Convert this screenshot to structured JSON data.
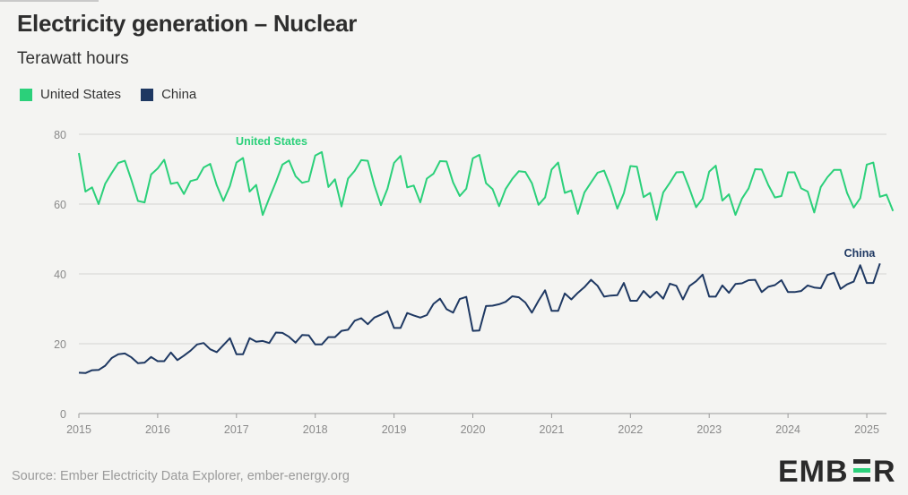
{
  "title": "Electricity generation – Nuclear",
  "subtitle": "Terawatt hours",
  "source": "Source: Ember Electricity Data Explorer, ember-energy.org",
  "logo_text": "EMBER",
  "colors": {
    "us": "#2bd07a",
    "china": "#1e3862",
    "grid": "#d3d3d3",
    "axis_text": "#8a8a8a"
  },
  "chart_data": {
    "type": "line",
    "title": "Electricity generation – Nuclear",
    "ylabel": "Terawatt hours",
    "xlabel": "",
    "ylim": [
      0,
      80
    ],
    "yticks": [
      0,
      20,
      40,
      60,
      80
    ],
    "xlim": [
      2015.0,
      2025.25
    ],
    "xticks": [
      "2015",
      "2016",
      "2017",
      "2018",
      "2019",
      "2020",
      "2021",
      "2022",
      "2023",
      "2024",
      "2025"
    ],
    "x_start": "2015-01",
    "x_step": "month",
    "legend_position": "top-left",
    "series": [
      {
        "name": "United States",
        "label": "United States",
        "color": "#2bd07a",
        "values": [
          74.6,
          63.6,
          64.8,
          60.0,
          65.8,
          68.9,
          71.8,
          72.4,
          66.9,
          60.9,
          60.5,
          68.5,
          70.2,
          72.7,
          65.8,
          66.2,
          62.9,
          66.6,
          67.1,
          70.5,
          71.5,
          65.4,
          60.9,
          65.2,
          71.9,
          73.2,
          63.6,
          65.5,
          56.9,
          61.7,
          66.3,
          71.3,
          72.5,
          68.0,
          66.1,
          66.6,
          73.9,
          74.9,
          64.9,
          67.1,
          59.3,
          67.3,
          69.5,
          72.6,
          72.4,
          65.4,
          59.7,
          64.4,
          71.8,
          73.8,
          64.8,
          65.3,
          60.5,
          67.3,
          68.7,
          72.3,
          72.2,
          66.2,
          62.3,
          64.4,
          73.1,
          74.1,
          66.0,
          64.3,
          59.4,
          64.3,
          67.2,
          69.4,
          69.2,
          66.0,
          59.8,
          61.9,
          69.9,
          71.9,
          63.2,
          63.9,
          57.2,
          63.3,
          66.2,
          69.0,
          69.6,
          64.8,
          58.7,
          63.1,
          70.9,
          70.7,
          62.0,
          63.2,
          55.5,
          63.3,
          66.1,
          69.1,
          69.2,
          64.4,
          59.1,
          61.6,
          69.3,
          71.0,
          61.0,
          62.8,
          56.9,
          61.6,
          64.5,
          70.0,
          69.9,
          65.5,
          61.9,
          62.3,
          69.1,
          69.1,
          64.5,
          63.6,
          57.6,
          64.9,
          67.7,
          69.8,
          69.8,
          63.2,
          59.0,
          61.7,
          71.3,
          71.9,
          62.1,
          62.7,
          58.0
        ]
      },
      {
        "name": "China",
        "label": "China",
        "color": "#1e3862",
        "values": [
          11.7,
          11.6,
          12.4,
          12.5,
          13.7,
          15.9,
          17.0,
          17.2,
          16.1,
          14.4,
          14.6,
          16.2,
          15.0,
          15.0,
          17.5,
          15.3,
          16.6,
          18.0,
          19.8,
          20.2,
          18.4,
          17.6,
          19.6,
          21.6,
          17.0,
          17.0,
          21.6,
          20.6,
          20.8,
          20.2,
          23.2,
          23.1,
          22.0,
          20.3,
          22.5,
          22.4,
          19.8,
          19.8,
          21.9,
          21.9,
          23.7,
          24.0,
          26.6,
          27.3,
          25.6,
          27.5,
          28.3,
          29.3,
          24.5,
          24.5,
          28.8,
          28.1,
          27.5,
          28.2,
          31.4,
          32.9,
          29.9,
          28.9,
          32.8,
          33.4,
          23.7,
          23.8,
          30.8,
          30.9,
          31.3,
          32.0,
          33.6,
          33.3,
          31.8,
          28.9,
          32.3,
          35.3,
          29.4,
          29.4,
          34.4,
          32.7,
          34.6,
          36.2,
          38.3,
          36.6,
          33.5,
          33.8,
          33.9,
          37.4,
          32.3,
          32.3,
          35.1,
          33.2,
          34.9,
          32.9,
          37.2,
          36.6,
          32.7,
          36.5,
          37.9,
          39.8,
          33.5,
          33.5,
          36.7,
          34.6,
          37.1,
          37.3,
          38.2,
          38.3,
          34.8,
          36.3,
          36.8,
          38.2,
          34.8,
          34.8,
          35.1,
          36.7,
          36.1,
          35.9,
          39.7,
          40.3,
          35.7,
          37.0,
          37.8,
          42.5,
          37.4,
          37.4,
          43.0
        ]
      }
    ]
  }
}
